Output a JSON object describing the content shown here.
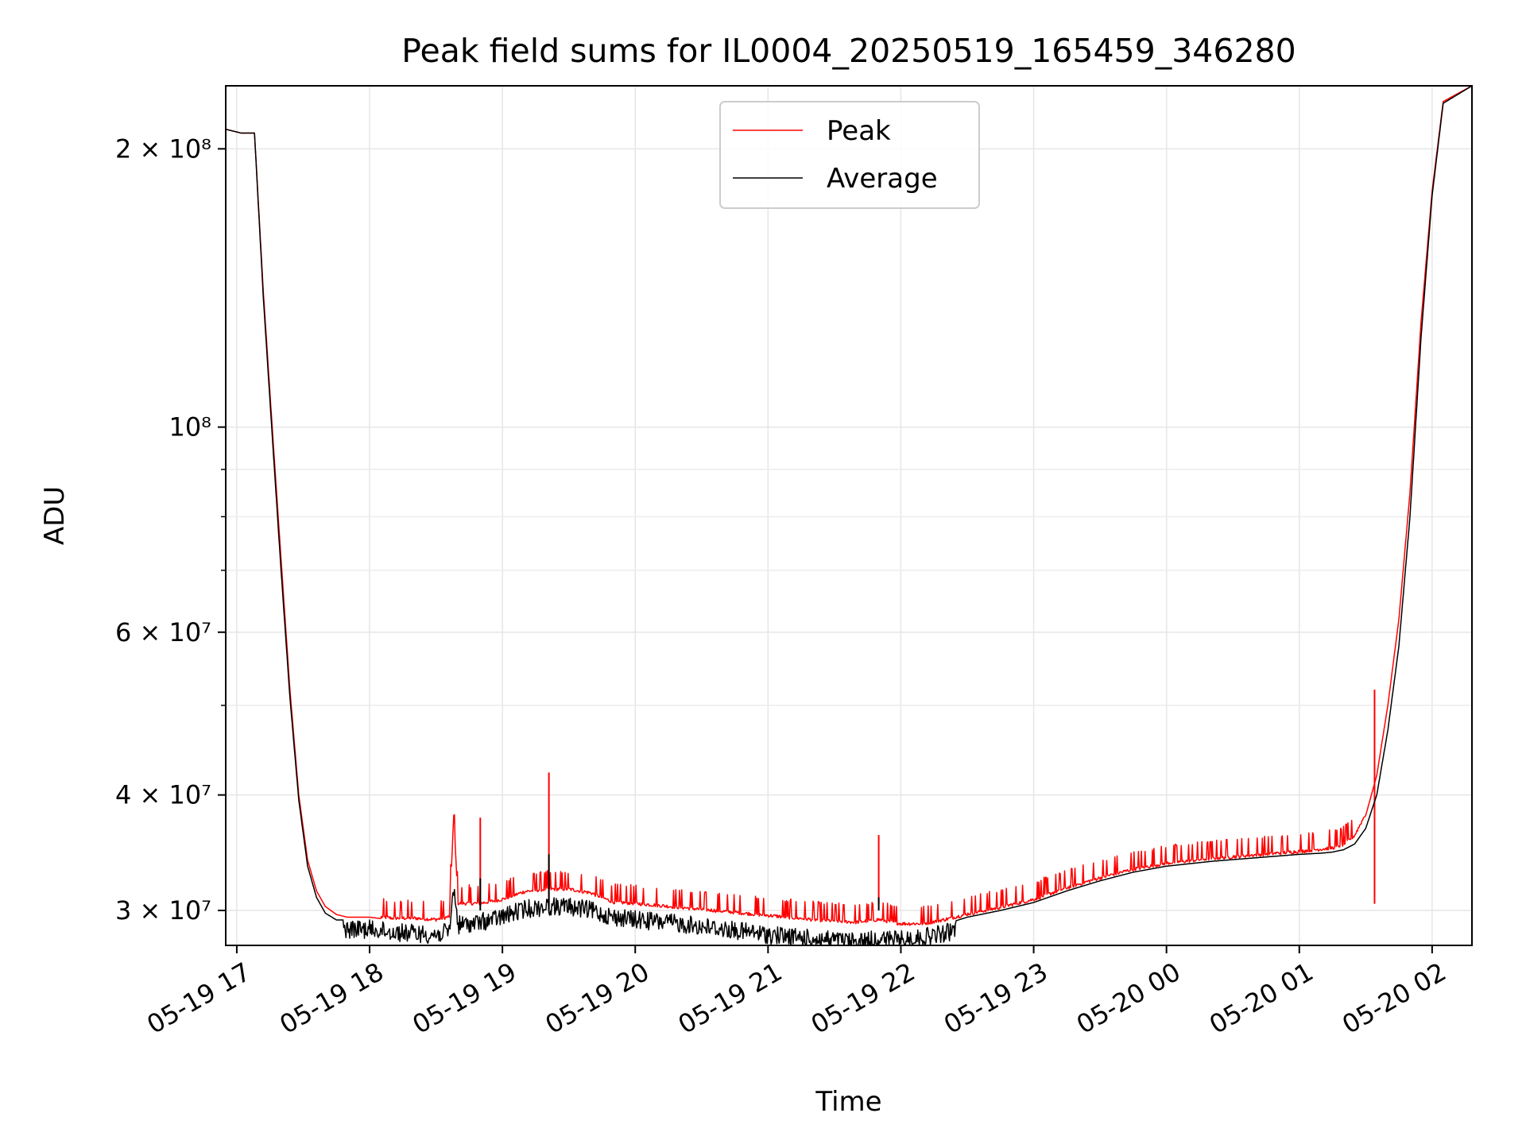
{
  "chart_data": {
    "type": "line",
    "title": "Peak field sums for IL0004_20250519_165459_346280",
    "xlabel": "Time",
    "ylabel": "ADU",
    "yscale": "log",
    "ylim": [
      27500000,
      234000000
    ],
    "xlim": [
      "2025-05-19 16:55",
      "2025-05-20 02:18"
    ],
    "x_ticks": [
      {
        "value": "2025-05-19 17:00",
        "label": "05-19 17"
      },
      {
        "value": "2025-05-19 18:00",
        "label": "05-19 18"
      },
      {
        "value": "2025-05-19 19:00",
        "label": "05-19 19"
      },
      {
        "value": "2025-05-19 20:00",
        "label": "05-19 20"
      },
      {
        "value": "2025-05-19 21:00",
        "label": "05-19 21"
      },
      {
        "value": "2025-05-19 22:00",
        "label": "05-19 22"
      },
      {
        "value": "2025-05-19 23:00",
        "label": "05-19 23"
      },
      {
        "value": "2025-05-20 00:00",
        "label": "05-20 00"
      },
      {
        "value": "2025-05-20 01:00",
        "label": "05-20 01"
      },
      {
        "value": "2025-05-20 02:00",
        "label": "05-20 02"
      }
    ],
    "y_major_ticks": [
      {
        "value": 30000000,
        "label": "3 × 10⁷"
      },
      {
        "value": 40000000,
        "label": "4 × 10⁷"
      },
      {
        "value": 60000000,
        "label": "6 × 10⁷"
      },
      {
        "value": 100000000,
        "label": "10⁸"
      },
      {
        "value": 200000000,
        "label": "2 × 10⁸"
      }
    ],
    "y_minor_ticks": [
      50000000,
      70000000,
      80000000,
      90000000
    ],
    "grid": true,
    "legend_position": "top-center",
    "series": [
      {
        "name": "Peak",
        "color": "#ff0000",
        "x": [
          "2025-05-19 16:55",
          "2025-05-19 17:02",
          "2025-05-19 17:08",
          "2025-05-19 17:12",
          "2025-05-19 17:16",
          "2025-05-19 17:20",
          "2025-05-19 17:24",
          "2025-05-19 17:28",
          "2025-05-19 17:32",
          "2025-05-19 17:36",
          "2025-05-19 17:40",
          "2025-05-19 17:45",
          "2025-05-19 17:50",
          "2025-05-19 18:00",
          "2025-05-19 18:10",
          "2025-05-19 18:20",
          "2025-05-19 18:30",
          "2025-05-19 18:36",
          "2025-05-19 18:38",
          "2025-05-19 18:40",
          "2025-05-19 18:50",
          "2025-05-19 19:00",
          "2025-05-19 19:05",
          "2025-05-19 19:10",
          "2025-05-19 19:20",
          "2025-05-19 19:30",
          "2025-05-19 19:40",
          "2025-05-19 19:50",
          "2025-05-19 20:00",
          "2025-05-19 20:20",
          "2025-05-19 20:40",
          "2025-05-19 21:00",
          "2025-05-19 21:20",
          "2025-05-19 21:40",
          "2025-05-19 21:50",
          "2025-05-19 22:00",
          "2025-05-19 22:10",
          "2025-05-19 22:20",
          "2025-05-19 22:30",
          "2025-05-19 22:45",
          "2025-05-19 23:00",
          "2025-05-19 23:15",
          "2025-05-19 23:30",
          "2025-05-19 23:45",
          "2025-05-20 00:00",
          "2025-05-20 00:20",
          "2025-05-20 00:40",
          "2025-05-20 01:00",
          "2025-05-20 01:10",
          "2025-05-20 01:15",
          "2025-05-20 01:20",
          "2025-05-20 01:25",
          "2025-05-20 01:30",
          "2025-05-20 01:35",
          "2025-05-20 01:40",
          "2025-05-20 01:45",
          "2025-05-20 01:50",
          "2025-05-20 01:55",
          "2025-05-20 02:00",
          "2025-05-20 02:05",
          "2025-05-20 02:18"
        ],
        "y": [
          210000000,
          208000000,
          208000000,
          140000000,
          100000000,
          72000000,
          52000000,
          40000000,
          34000000,
          31500000,
          30300000,
          29700000,
          29500000,
          29500000,
          29300000,
          29300000,
          29200000,
          29400000,
          37800000,
          30400000,
          30400000,
          30700000,
          31000000,
          31300000,
          31500000,
          31500000,
          31200000,
          30500000,
          30400000,
          30100000,
          29800000,
          29500000,
          29200000,
          29000000,
          29200000,
          28900000,
          28900000,
          29200000,
          29600000,
          30100000,
          30700000,
          31600000,
          32400000,
          33100000,
          33600000,
          34000000,
          34300000,
          34600000,
          34800000,
          34900000,
          35200000,
          36000000,
          38000000,
          42000000,
          50000000,
          62000000,
          85000000,
          130000000,
          180000000,
          225000000,
          234000000
        ],
        "spikes": [
          {
            "x": "2025-05-19 18:50",
            "y": 37800000
          },
          {
            "x": "2025-05-19 19:21",
            "y": 42300000
          },
          {
            "x": "2025-05-19 21:50",
            "y": 36200000
          },
          {
            "x": "2025-05-20 01:34",
            "y": 52000000
          }
        ]
      },
      {
        "name": "Average",
        "color": "#000000",
        "x": [
          "2025-05-19 16:55",
          "2025-05-19 17:02",
          "2025-05-19 17:08",
          "2025-05-19 17:12",
          "2025-05-19 17:16",
          "2025-05-19 17:20",
          "2025-05-19 17:24",
          "2025-05-19 17:28",
          "2025-05-19 17:32",
          "2025-05-19 17:36",
          "2025-05-19 17:40",
          "2025-05-19 17:45",
          "2025-05-19 17:50",
          "2025-05-19 18:00",
          "2025-05-19 18:10",
          "2025-05-19 18:20",
          "2025-05-19 18:30",
          "2025-05-19 18:36",
          "2025-05-19 18:38",
          "2025-05-19 18:40",
          "2025-05-19 18:50",
          "2025-05-19 19:00",
          "2025-05-19 19:05",
          "2025-05-19 19:10",
          "2025-05-19 19:20",
          "2025-05-19 19:30",
          "2025-05-19 19:40",
          "2025-05-19 19:50",
          "2025-05-19 20:00",
          "2025-05-19 20:20",
          "2025-05-19 20:40",
          "2025-05-19 21:00",
          "2025-05-19 21:20",
          "2025-05-19 21:40",
          "2025-05-19 21:50",
          "2025-05-19 22:00",
          "2025-05-19 22:10",
          "2025-05-19 22:20",
          "2025-05-19 22:30",
          "2025-05-19 22:45",
          "2025-05-19 23:00",
          "2025-05-19 23:15",
          "2025-05-19 23:30",
          "2025-05-19 23:45",
          "2025-05-20 00:00",
          "2025-05-20 00:20",
          "2025-05-20 00:40",
          "2025-05-20 01:00",
          "2025-05-20 01:10",
          "2025-05-20 01:15",
          "2025-05-20 01:20",
          "2025-05-20 01:25",
          "2025-05-20 01:30",
          "2025-05-20 01:35",
          "2025-05-20 01:40",
          "2025-05-20 01:45",
          "2025-05-20 01:50",
          "2025-05-20 01:55",
          "2025-05-20 02:00",
          "2025-05-20 02:05",
          "2025-05-20 02:18"
        ],
        "y": [
          210000000,
          208000000,
          208000000,
          138000000,
          98000000,
          70000000,
          51000000,
          39500000,
          33500000,
          31000000,
          29800000,
          29300000,
          29300000,
          29300000,
          29100000,
          29000000,
          28900000,
          29100000,
          32500000,
          29600000,
          29800000,
          30200000,
          30500000,
          30800000,
          31000000,
          31000000,
          30700000,
          30200000,
          30000000,
          29700000,
          29300000,
          28900000,
          28600000,
          28400000,
          28600000,
          28500000,
          28700000,
          29000000,
          29500000,
          30000000,
          30600000,
          31500000,
          32300000,
          33000000,
          33500000,
          33900000,
          34200000,
          34500000,
          34600000,
          34700000,
          34900000,
          35400000,
          36800000,
          40000000,
          47000000,
          58000000,
          80000000,
          125000000,
          178000000,
          224000000,
          234000000
        ],
        "spikes": [
          {
            "x": "2025-05-19 18:50",
            "y": 32500000
          },
          {
            "x": "2025-05-19 19:21",
            "y": 34500000
          },
          {
            "x": "2025-05-19 21:50",
            "y": 31000000
          }
        ]
      }
    ]
  }
}
